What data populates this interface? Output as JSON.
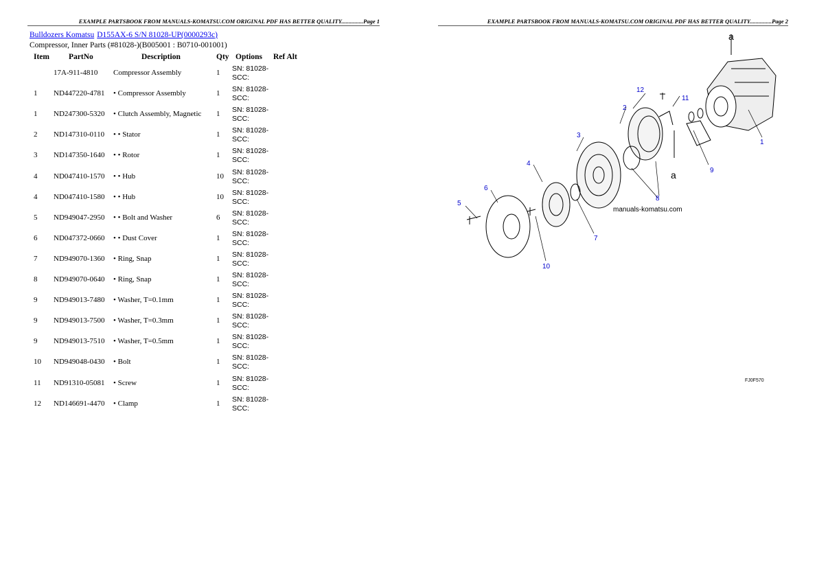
{
  "header_left": "EXAMPLE PARTSBOOK FROM MANUALS-KOMATSU.COM ORIGINAL PDF HAS BETTER QUALITY...............Page 1",
  "header_right": "EXAMPLE PARTSBOOK FROM MANUALS-KOMATSU.COM ORIGINAL PDF HAS BETTER QUALITY...............Page 2",
  "breadcrumb": [
    "Bulldozers Komatsu",
    "D155AX-6 S/N 81028-UP(0000293c)"
  ],
  "subtitle": "Compressor, Inner Parts (#81028-)(B005001 : B0710-001001)",
  "columns": [
    "Item",
    "PartNo",
    "Description",
    "Qty",
    "Options",
    "Ref Alt"
  ],
  "rows": [
    {
      "item": "",
      "part": "17A-911-4810",
      "desc": "Compressor Assembly",
      "qty": "1",
      "opt": "SN: 81028-SCC:"
    },
    {
      "item": "1",
      "part": "ND447220-4781",
      "desc": "• Compressor Assembly",
      "qty": "1",
      "opt": "SN: 81028-SCC:"
    },
    {
      "item": "1",
      "part": "ND247300-5320",
      "desc": "• Clutch Assembly, Magnetic",
      "qty": "1",
      "opt": "SN: 81028-SCC:"
    },
    {
      "item": "2",
      "part": "ND147310-0110",
      "desc": "• • Stator",
      "qty": "1",
      "opt": "SN: 81028-SCC:"
    },
    {
      "item": "3",
      "part": "ND147350-1640",
      "desc": "• • Rotor",
      "qty": "1",
      "opt": "SN: 81028-SCC:"
    },
    {
      "item": "4",
      "part": "ND047410-1570",
      "desc": "• • Hub",
      "qty": "10",
      "opt": "SN: 81028-SCC:"
    },
    {
      "item": "4",
      "part": "ND047410-1580",
      "desc": "• • Hub",
      "qty": "10",
      "opt": "SN: 81028-SCC:"
    },
    {
      "item": "5",
      "part": "ND949047-2950",
      "desc": "• • Bolt and Washer",
      "qty": "6",
      "opt": "SN: 81028-SCC:"
    },
    {
      "item": "6",
      "part": "ND047372-0660",
      "desc": "• • Dust Cover",
      "qty": "1",
      "opt": "SN: 81028-SCC:"
    },
    {
      "item": "7",
      "part": "ND949070-1360",
      "desc": "• Ring, Snap",
      "qty": "1",
      "opt": "SN: 81028-SCC:"
    },
    {
      "item": "8",
      "part": "ND949070-0640",
      "desc": "• Ring, Snap",
      "qty": "1",
      "opt": "SN: 81028-SCC:"
    },
    {
      "item": "9",
      "part": "ND949013-7480",
      "desc": "• Washer, T=0.1mm",
      "qty": "1",
      "opt": "SN: 81028-SCC:"
    },
    {
      "item": "9",
      "part": "ND949013-7500",
      "desc": "• Washer, T=0.3mm",
      "qty": "1",
      "opt": "SN: 81028-SCC:"
    },
    {
      "item": "9",
      "part": "ND949013-7510",
      "desc": "• Washer, T=0.5mm",
      "qty": "1",
      "opt": "SN: 81028-SCC:"
    },
    {
      "item": "10",
      "part": "ND949048-0430",
      "desc": "• Bolt",
      "qty": "1",
      "opt": "SN: 81028-SCC:"
    },
    {
      "item": "11",
      "part": "ND91310-05081",
      "desc": "• Screw",
      "qty": "1",
      "opt": "SN: 81028-SCC:"
    },
    {
      "item": "12",
      "part": "ND146691-4470",
      "desc": "• Clamp",
      "qty": "1",
      "opt": "SN: 81028-SCC:"
    }
  ],
  "diagram": {
    "callouts": [
      "a",
      "12",
      "11",
      "2",
      "3",
      "1",
      "4",
      "a",
      "9",
      "6",
      "5",
      "8",
      "7",
      "10"
    ],
    "watermark": "manuals-komatsu.com",
    "code": "FJ0F570"
  }
}
